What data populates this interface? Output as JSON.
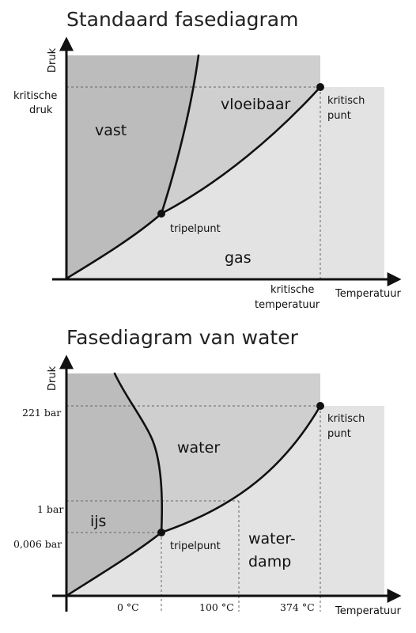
{
  "colors": {
    "solid": "#bcbcbc",
    "liquid": "#cfcfcf",
    "gas": "#e3e3e3",
    "curves": "#111111",
    "text": "#111111"
  },
  "diagram1": {
    "title": "Standaard fasediagram",
    "y_axis_label": "Druk",
    "x_axis_label": "Temperatuur",
    "critical_pressure_label": [
      "kritische",
      "druk"
    ],
    "critical_temperature_label": [
      "kritische",
      "temperatuur"
    ],
    "regions": {
      "solid": "vast",
      "liquid": "vloeibaar",
      "gas": "gas"
    },
    "triple_point_label": "tripelpunt",
    "critical_point_label": [
      "kritisch",
      "punt"
    ]
  },
  "diagram2": {
    "title": "Fasediagram van water",
    "y_axis_label": "Druk",
    "x_axis_label": "Temperatuur",
    "pressure_ticks": [
      "221 bar",
      "1 bar",
      "0,006 bar"
    ],
    "temperature_ticks": [
      "0 °C",
      "100 °C",
      "374 °C"
    ],
    "regions": {
      "solid": "ijs",
      "liquid": "water",
      "gas": [
        "water-",
        "damp"
      ]
    },
    "triple_point_label": "tripelpunt",
    "critical_point_label": [
      "kritisch",
      "punt"
    ]
  }
}
